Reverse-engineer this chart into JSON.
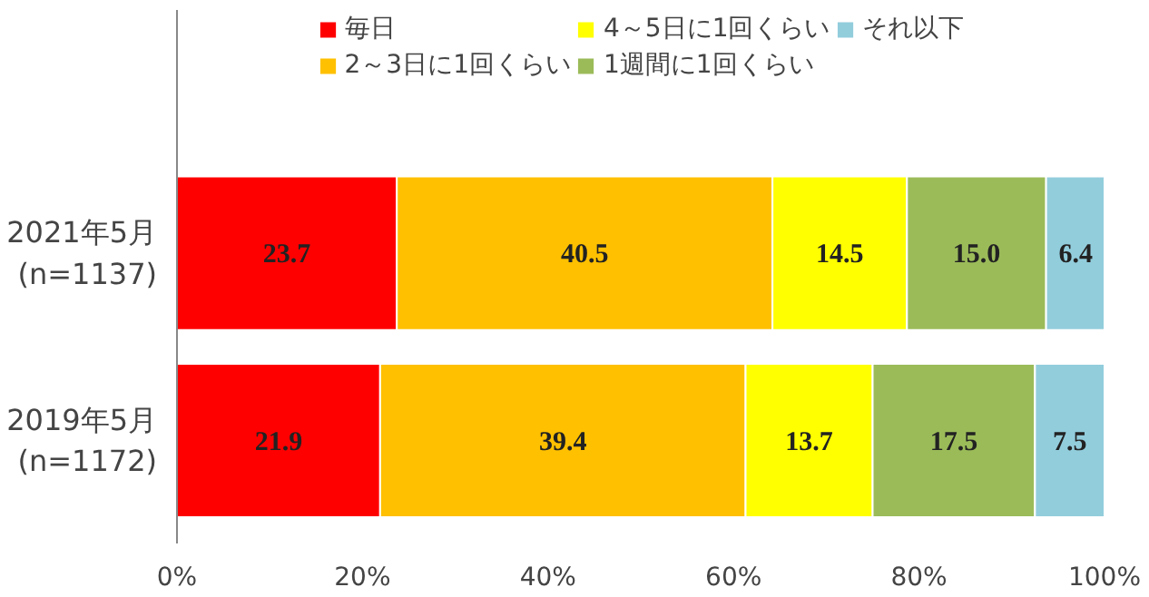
{
  "chart_data": {
    "type": "bar",
    "orientation": "horizontal",
    "stacked": true,
    "categories": [
      "2021年5月\n(n=1137)",
      "2019年5月\n(n=1172)"
    ],
    "series": [
      {
        "name": "毎日",
        "color": "#ff0000",
        "values": [
          23.7,
          21.9
        ],
        "value_labels": [
          "23.7",
          "21.9"
        ]
      },
      {
        "name": "2～3日に1回くらい",
        "color": "#ffc000",
        "values": [
          40.5,
          39.4
        ],
        "value_labels": [
          "40.5",
          "39.4"
        ]
      },
      {
        "name": "4～5日に1回くらい",
        "color": "#ffff00",
        "values": [
          14.5,
          13.7
        ],
        "value_labels": [
          "14.5",
          "13.7"
        ]
      },
      {
        "name": "1週間に1回くらい",
        "color": "#9bbb59",
        "values": [
          15.0,
          17.5
        ],
        "value_labels": [
          "15.0",
          "17.5"
        ]
      },
      {
        "name": "それ以下",
        "color": "#92cddc",
        "values": [
          6.4,
          7.5
        ],
        "value_labels": [
          "6.4",
          "7.5"
        ]
      }
    ],
    "xlim": [
      0,
      100
    ],
    "xticks": [
      {
        "value": 0,
        "label": "0%"
      },
      {
        "value": 20,
        "label": "20%"
      },
      {
        "value": 40,
        "label": "40%"
      },
      {
        "value": 60,
        "label": "60%"
      },
      {
        "value": 80,
        "label": "80%"
      },
      {
        "value": 100,
        "label": "100%"
      }
    ],
    "legend": "top",
    "grid": false
  }
}
